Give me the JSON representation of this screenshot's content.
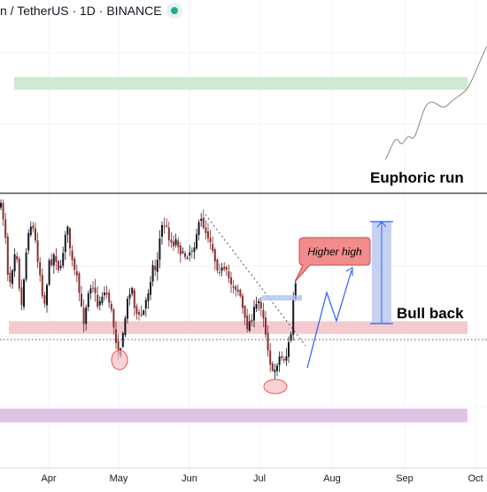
{
  "header": {
    "symbol_line": "n / TetherUS · 1D · BINANCE",
    "status_color": "#22ab94"
  },
  "annotations": {
    "euphoric_run": "Euphoric run",
    "bull_back": "Bull back",
    "higher_high": "Higher high"
  },
  "chart_data": {
    "type": "candlestick",
    "x_tick_labels": [
      "Apr",
      "May",
      "Jun",
      "Jul",
      "Aug",
      "Sep",
      "Oct"
    ],
    "y_range": [
      0.0,
      1.0
    ],
    "zones": [
      {
        "name": "resistance",
        "color": "#c8e6c9",
        "y_range": [
          0.838,
          0.866
        ]
      },
      {
        "name": "support",
        "color": "#f3c1c5",
        "y_range": [
          0.302,
          0.33
        ]
      },
      {
        "name": "lower support",
        "color": "#dcb9e3",
        "y_range": [
          0.108,
          0.138
        ]
      }
    ],
    "current_price_level": 0.29,
    "colors": {
      "up": "#26a69a",
      "down": "#ef5350",
      "candle": "#131722"
    }
  }
}
